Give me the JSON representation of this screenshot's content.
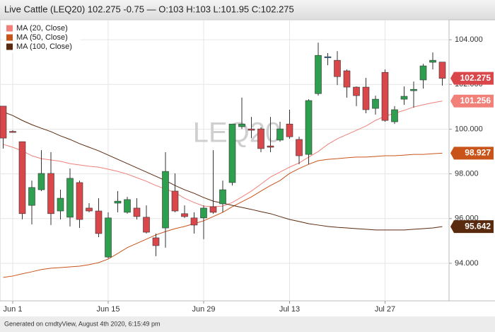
{
  "chart_data": {
    "type": "candlestick",
    "title": "Live Cattle (LEQ20) 102.275 -0.75 — O:103 H:103 L:101.95 C:102.275",
    "watermark": "LEQ20",
    "footer": "Generated on cmdtyView, August 4th 2020, 6:15:49 pm",
    "categories": [
      null,
      "Jun 1",
      null,
      null,
      null,
      null,
      null,
      null,
      null,
      null,
      null,
      "Jun 15",
      null,
      null,
      null,
      null,
      null,
      null,
      null,
      null,
      null,
      "Jun 29",
      null,
      null,
      null,
      null,
      null,
      null,
      null,
      null,
      "Jul 13",
      null,
      null,
      null,
      null,
      null,
      null,
      null,
      null,
      null,
      "Jul 27",
      null,
      null,
      null,
      null,
      null,
      null
    ],
    "candles": {
      "colors": {
        "up": "#2e9e4f",
        "down": "#d9474b",
        "flat": "#3d7fc1"
      },
      "open": [
        101.03,
        99.9,
        99.44,
        96.59,
        97.29,
        98.02,
        96.34,
        96.06,
        97.61,
        96.47,
        96.34,
        94.28,
        96.69,
        96.28,
        96.47,
        96.06,
        95.14,
        95.58,
        97.23,
        96.22,
        96.03,
        96.03,
        96.53,
        96.66,
        97.61,
        100.11,
        100.01,
        100.01,
        99.25,
        99.51,
        100.23,
        99.54,
        98.87,
        101.59,
        103.24,
        103.08,
        102.61,
        101.88,
        101.88,
        100.93,
        102.54,
        100.33,
        101.34,
        101.72,
        102.2,
        102.99,
        103
      ],
      "high": [
        101.03,
        99.95,
        99.44,
        97.7,
        99.06,
        98.97,
        97.29,
        98.24,
        97.7,
        96.69,
        96.91,
        96.28,
        97.23,
        96.97,
        96.91,
        96.59,
        95.33,
        98.97,
        98.02,
        96.59,
        96.28,
        96.59,
        99.06,
        97.7,
        100.23,
        101.41,
        100.55,
        100.08,
        100.55,
        100.33,
        100.87,
        99.66,
        101.34,
        103.87,
        103.4,
        103.49,
        102.67,
        101.91,
        102.29,
        101.5,
        102.67,
        101.03,
        101.91,
        102.13,
        102.92,
        103.43,
        103
      ],
      "low": [
        99.13,
        99.85,
        95.97,
        95.74,
        97.23,
        95.71,
        95.96,
        95.65,
        95.58,
        96.28,
        95.17,
        94.22,
        96.28,
        96.22,
        95.96,
        95.33,
        94.32,
        94.7,
        96.28,
        96.03,
        95.33,
        95.08,
        96.22,
        96.28,
        97.48,
        100.01,
        99.6,
        98.97,
        98.97,
        99.44,
        99.57,
        98.43,
        98.43,
        101.5,
        102.86,
        101.97,
        101.41,
        101.03,
        100.71,
        100.65,
        100.33,
        100.23,
        101.09,
        100.96,
        101.82,
        102.67,
        101.95
      ],
      "close": [
        99.6,
        99.87,
        96.22,
        97.39,
        98.02,
        96.22,
        96.91,
        97.8,
        95.96,
        96.34,
        95.33,
        96.03,
        96.78,
        96.85,
        96.09,
        95.39,
        94.79,
        98.11,
        96.34,
        96.09,
        95.71,
        96.47,
        96.28,
        97.29,
        100.23,
        100.23,
        99.95,
        99.13,
        99.19,
        100.01,
        99.66,
        98.81,
        101.28,
        103.3,
        103.24,
        102.35,
        101.88,
        101.5,
        100.87,
        101.34,
        100.39,
        100.87,
        101.47,
        101.78,
        102.83,
        103.08,
        102.275
      ]
    },
    "series": [
      {
        "name": "MA (20, Close)",
        "color": "#f08078",
        "values": [
          99.32,
          99.19,
          99.03,
          98.81,
          98.68,
          98.62,
          98.56,
          98.46,
          98.4,
          98.34,
          98.3,
          98.21,
          98.11,
          97.99,
          97.83,
          97.67,
          97.48,
          97.32,
          97.16,
          96.91,
          96.72,
          96.56,
          96.53,
          96.56,
          96.72,
          96.97,
          97.23,
          97.54,
          97.86,
          98.08,
          98.3,
          98.49,
          98.75,
          99.0,
          99.32,
          99.57,
          99.76,
          99.95,
          100.14,
          100.39,
          100.58,
          100.71,
          100.84,
          100.99,
          101.09,
          101.18,
          101.256
        ]
      },
      {
        "name": "MA (50, Close)",
        "color": "#c8541a",
        "values": [
          93.37,
          93.43,
          93.53,
          93.62,
          93.72,
          93.78,
          93.81,
          93.84,
          93.87,
          93.94,
          94.03,
          94.19,
          94.44,
          94.7,
          94.89,
          95.08,
          95.27,
          95.42,
          95.55,
          95.65,
          95.77,
          95.9,
          96.09,
          96.28,
          96.53,
          96.75,
          96.97,
          97.23,
          97.48,
          97.7,
          98.02,
          98.24,
          98.43,
          98.59,
          98.65,
          98.68,
          98.72,
          98.75,
          98.75,
          98.78,
          98.81,
          98.81,
          98.84,
          98.87,
          98.87,
          98.9,
          98.927
        ]
      },
      {
        "name": "MA (100, Close)",
        "color": "#5a2a0e",
        "values": [
          100.77,
          100.61,
          100.39,
          100.2,
          100.04,
          99.89,
          99.7,
          99.54,
          99.35,
          99.19,
          99.03,
          98.84,
          98.65,
          98.46,
          98.27,
          98.08,
          97.89,
          97.7,
          97.48,
          97.29,
          97.13,
          96.94,
          96.78,
          96.69,
          96.59,
          96.5,
          96.41,
          96.31,
          96.22,
          96.09,
          95.96,
          95.87,
          95.77,
          95.71,
          95.65,
          95.61,
          95.58,
          95.55,
          95.52,
          95.49,
          95.49,
          95.49,
          95.49,
          95.52,
          95.55,
          95.58,
          95.642
        ]
      }
    ],
    "ylim": [
      92.32,
      104.89
    ],
    "yticks": [
      {
        "value": 94,
        "label": "94.000"
      },
      {
        "value": 96,
        "label": "96.000"
      },
      {
        "value": 98,
        "label": "98.000"
      },
      {
        "value": 100,
        "label": "100.000"
      },
      {
        "value": 102,
        "label": "102.000"
      },
      {
        "value": 104,
        "label": "104.000"
      }
    ],
    "grid": true,
    "legend": "top-left"
  }
}
